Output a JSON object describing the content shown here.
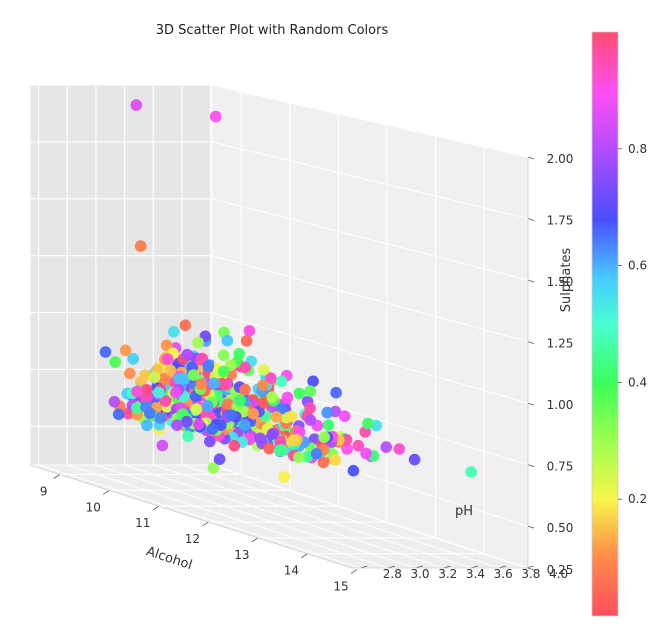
{
  "chart_data": {
    "type": "scatter",
    "projection": "3d",
    "title": "3D Scatter Plot with Random Colors",
    "xlabel": "Alcohol",
    "ylabel": "pH",
    "zlabel": "Sulphates",
    "xlim": [
      8.4,
      14.9
    ],
    "ylim": [
      2.74,
      4.01
    ],
    "zlim": [
      0.33,
      2.0
    ],
    "xticks": [
      "9",
      "10",
      "11",
      "12",
      "13",
      "14",
      "15"
    ],
    "yticks": [
      "2.8",
      "3.0",
      "3.2",
      "3.4",
      "3.6",
      "3.8",
      "4.0"
    ],
    "zticks": [
      "0.25",
      "0.50",
      "0.75",
      "1.00",
      "1.25",
      "1.50",
      "1.75",
      "2.00"
    ],
    "colormap": "gist_rainbow_r",
    "colorbar_ticks": [
      "0.2",
      "0.4",
      "0.6",
      "0.8"
    ],
    "colorbar_range": [
      0,
      1
    ],
    "n_points": 1599,
    "color_values": "random uniform [0, 1]",
    "sample_points": [
      {
        "alcohol": 9.4,
        "ph": 3.51,
        "sulphates": 0.56
      },
      {
        "alcohol": 9.8,
        "ph": 3.2,
        "sulphates": 0.68
      },
      {
        "alcohol": 9.8,
        "ph": 3.26,
        "sulphates": 0.65
      },
      {
        "alcohol": 9.8,
        "ph": 3.16,
        "sulphates": 0.58
      },
      {
        "alcohol": 10.5,
        "ph": 3.3,
        "sulphates": 0.46
      },
      {
        "alcohol": 9.2,
        "ph": 3.39,
        "sulphates": 0.47
      },
      {
        "alcohol": 12.8,
        "ph": 3.0,
        "sulphates": 0.57
      },
      {
        "alcohol": 11.0,
        "ph": 3.17,
        "sulphates": 0.53
      },
      {
        "alcohol": 13.4,
        "ph": 3.72,
        "sulphates": 0.68
      },
      {
        "alcohol": 14.0,
        "ph": 3.4,
        "sulphates": 0.76
      },
      {
        "alcohol": 9.0,
        "ph": 3.9,
        "sulphates": 0.52
      },
      {
        "alcohol": 8.4,
        "ph": 3.35,
        "sulphates": 0.6
      },
      {
        "alcohol": 10.2,
        "ph": 3.42,
        "sulphates": 1.95
      },
      {
        "alcohol": 9.6,
        "ph": 3.1,
        "sulphates": 1.36
      },
      {
        "alcohol": 9.8,
        "ph": 3.0,
        "sulphates": 1.98
      },
      {
        "alcohol": 14.9,
        "ph": 3.6,
        "sulphates": 0.72
      }
    ]
  }
}
